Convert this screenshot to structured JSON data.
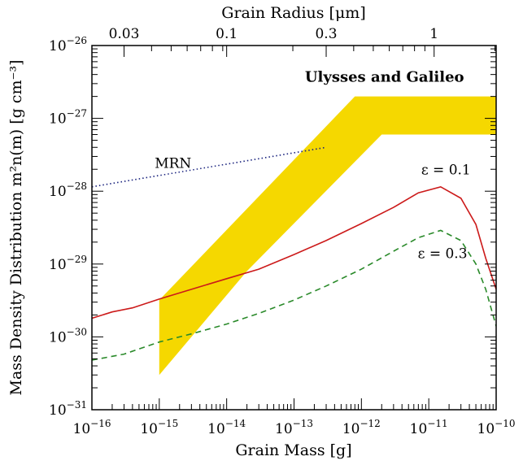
{
  "chart_data": {
    "type": "line",
    "xlabel": "Grain Mass [g]",
    "ylabel": "Mass Density Distribution m²n(m) [g cm⁻³]",
    "top_axis_label": "Grain Radius [μm]",
    "x_scale": "log",
    "y_scale": "log",
    "xlim": [
      1e-16,
      1e-10
    ],
    "ylim": [
      1e-31,
      1e-26
    ],
    "x_ticks": [
      {
        "value": 1e-16,
        "mantissa": "10",
        "exp": "−16"
      },
      {
        "value": 1e-15,
        "mantissa": "10",
        "exp": "−15"
      },
      {
        "value": 1e-14,
        "mantissa": "10",
        "exp": "−14"
      },
      {
        "value": 1e-13,
        "mantissa": "10",
        "exp": "−13"
      },
      {
        "value": 1e-12,
        "mantissa": "10",
        "exp": "−12"
      },
      {
        "value": 1e-11,
        "mantissa": "10",
        "exp": "−11"
      },
      {
        "value": 1e-10,
        "mantissa": "10",
        "exp": "−10"
      }
    ],
    "y_ticks": [
      {
        "value": 1e-31,
        "mantissa": "10",
        "exp": "−31"
      },
      {
        "value": 1e-30,
        "mantissa": "10",
        "exp": "−30"
      },
      {
        "value": 1e-29,
        "mantissa": "10",
        "exp": "−29"
      },
      {
        "value": 1e-28,
        "mantissa": "10",
        "exp": "−28"
      },
      {
        "value": 1e-27,
        "mantissa": "10",
        "exp": "−27"
      },
      {
        "value": 1e-26,
        "mantissa": "10",
        "exp": "−26"
      }
    ],
    "top_ticks": [
      {
        "label": "0.03",
        "mass": 3e-16
      },
      {
        "label": "0.1",
        "mass": 1e-14
      },
      {
        "label": "0.3",
        "mass": 3e-13
      },
      {
        "label": "1",
        "mass": 1.2e-11
      }
    ],
    "series": [
      {
        "key": "eps01",
        "name": "ε = 0.1",
        "color": "#cc1a1a",
        "dash": "solid",
        "points": [
          [
            1e-16,
            1.8e-30
          ],
          [
            2e-16,
            2.2e-30
          ],
          [
            4e-16,
            2.5e-30
          ],
          [
            1e-15,
            3.3e-30
          ],
          [
            3e-15,
            4.5e-30
          ],
          [
            1e-14,
            6.3e-30
          ],
          [
            3e-14,
            8.5e-30
          ],
          [
            1e-13,
            1.35e-29
          ],
          [
            3e-13,
            2.1e-29
          ],
          [
            1e-12,
            3.6e-29
          ],
          [
            3e-12,
            6e-29
          ],
          [
            7e-12,
            9.5e-29
          ],
          [
            1.5e-11,
            1.15e-28
          ],
          [
            3e-11,
            8e-29
          ],
          [
            5e-11,
            3.5e-29
          ],
          [
            7e-11,
            1.2e-29
          ],
          [
            1e-10,
            4.5e-30
          ]
        ]
      },
      {
        "key": "eps03",
        "name": "ε = 0.3",
        "color": "#2a8a2a",
        "dash": "dashed",
        "points": [
          [
            1e-16,
            4.8e-31
          ],
          [
            3e-16,
            5.8e-31
          ],
          [
            1e-15,
            8.5e-31
          ],
          [
            3e-15,
            1.1e-30
          ],
          [
            1e-14,
            1.5e-30
          ],
          [
            3e-14,
            2.1e-30
          ],
          [
            1e-13,
            3.2e-30
          ],
          [
            3e-13,
            5e-30
          ],
          [
            1e-12,
            8.5e-30
          ],
          [
            3e-12,
            1.5e-29
          ],
          [
            7e-12,
            2.3e-29
          ],
          [
            1.5e-11,
            2.9e-29
          ],
          [
            3e-11,
            2.1e-29
          ],
          [
            5e-11,
            1e-29
          ],
          [
            7e-11,
            4.5e-30
          ],
          [
            1e-10,
            1.4e-30
          ]
        ]
      },
      {
        "key": "mrn",
        "name": "MRN",
        "color": "#1a237e",
        "dash": "dotted",
        "points": [
          [
            1e-16,
            1.15e-28
          ],
          [
            3e-13,
            4e-28
          ]
        ]
      }
    ],
    "band": {
      "name": "Ulysses and Galileo",
      "color": "#f5d800",
      "polygon": [
        [
          1e-15,
          3e-31
        ],
        [
          1e-15,
          3.2e-30
        ],
        [
          8e-13,
          2e-27
        ],
        [
          1e-10,
          2e-27
        ],
        [
          1e-10,
          6e-28
        ],
        [
          2e-12,
          6e-28
        ],
        [
          2e-14,
          8e-30
        ]
      ]
    },
    "annotations": [
      {
        "key": "mrn",
        "text": "MRN",
        "x": 1.6e-15,
        "y": 2.1e-28
      },
      {
        "key": "band",
        "text": "Ulysses and Galileo",
        "x": 2.2e-12,
        "y": 3.2e-27
      },
      {
        "key": "eps01",
        "text": "ε  =  0.1",
        "x": 1.8e-11,
        "y": 1.7e-28
      },
      {
        "key": "eps03",
        "text": "ε  =  0.3",
        "x": 1.6e-11,
        "y": 1.2e-29
      }
    ],
    "grid": false,
    "legend": "none"
  }
}
